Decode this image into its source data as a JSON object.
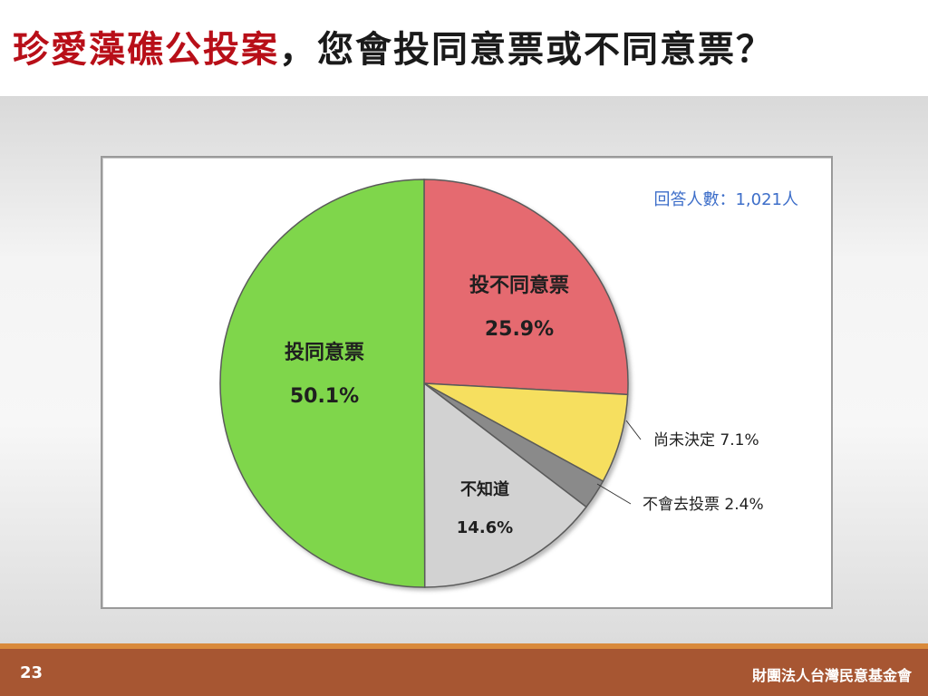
{
  "title": {
    "highlight": "珍愛藻礁公投案",
    "rest": "，您會投同意票或不同意票？"
  },
  "colors": {
    "accent": "#b80f18",
    "footer": "#a75632",
    "footer_line": "#d98a3c",
    "respondents_text": "#3d6ec9"
  },
  "chart_data": {
    "type": "pie",
    "annotation": "回答人數：1,021人",
    "slices": [
      {
        "label": "投不同意票",
        "value": 25.9,
        "display": "25.9%",
        "color": "#e56b70"
      },
      {
        "label": "尚未決定",
        "value": 7.1,
        "display": "7.1%",
        "color": "#f6df5e"
      },
      {
        "label": "不會去投票",
        "value": 2.4,
        "display": "2.4%",
        "color": "#8a8a8a"
      },
      {
        "label": "不知道",
        "value": 14.6,
        "display": "14.6%",
        "color": "#d2d2d2"
      },
      {
        "label": "投同意票",
        "value": 50.1,
        "display": "50.1%",
        "color": "#7fd64c"
      }
    ],
    "start_angle": "12 o'clock",
    "direction": "clockwise"
  },
  "footer": {
    "page_number": "23",
    "organization": "財團法人台灣民意基金會"
  }
}
